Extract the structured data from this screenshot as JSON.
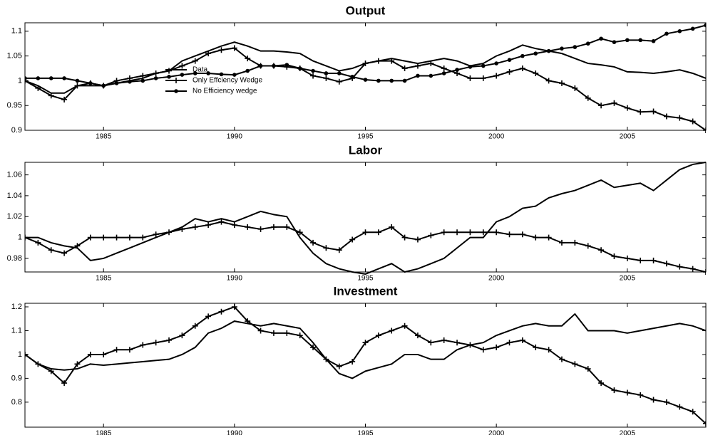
{
  "chart_data": [
    {
      "type": "line",
      "title": "Output",
      "x": [
        1982,
        1982.5,
        1983,
        1983.5,
        1984,
        1984.5,
        1985,
        1985.5,
        1986,
        1986.5,
        1987,
        1987.5,
        1988,
        1988.5,
        1989,
        1989.5,
        1990,
        1990.5,
        1991,
        1991.5,
        1992,
        1992.5,
        1993,
        1993.5,
        1994,
        1994.5,
        1995,
        1995.5,
        1996,
        1996.5,
        1997,
        1997.5,
        1998,
        1998.5,
        1999,
        1999.5,
        2000,
        2000.5,
        2001,
        2001.5,
        2002,
        2002.5,
        2003,
        2003.5,
        2004,
        2004.5,
        2005,
        2005.5,
        2006,
        2006.5,
        2007,
        2007.5,
        2008
      ],
      "series": [
        {
          "name": "Data",
          "color": "#000000",
          "marker": "none",
          "values": [
            1.0,
            0.99,
            0.975,
            0.975,
            0.99,
            0.99,
            0.99,
            0.995,
            1.0,
            1.005,
            1.015,
            1.02,
            1.04,
            1.05,
            1.06,
            1.07,
            1.078,
            1.07,
            1.06,
            1.06,
            1.058,
            1.055,
            1.04,
            1.03,
            1.02,
            1.025,
            1.035,
            1.04,
            1.045,
            1.04,
            1.035,
            1.04,
            1.045,
            1.04,
            1.03,
            1.035,
            1.05,
            1.06,
            1.072,
            1.065,
            1.06,
            1.055,
            1.045,
            1.035,
            1.032,
            1.028,
            1.018,
            1.017,
            1.015,
            1.018,
            1.022,
            1.015,
            1.005
          ]
        },
        {
          "name": "Only Effciency Wedge",
          "color": "#000000",
          "marker": "plus",
          "values": [
            1.0,
            0.985,
            0.97,
            0.962,
            0.99,
            0.995,
            0.99,
            1.0,
            1.005,
            1.01,
            1.015,
            1.02,
            1.03,
            1.04,
            1.055,
            1.062,
            1.066,
            1.045,
            1.03,
            1.03,
            1.028,
            1.025,
            1.01,
            1.005,
            0.998,
            1.005,
            1.035,
            1.04,
            1.04,
            1.025,
            1.03,
            1.035,
            1.025,
            1.015,
            1.005,
            1.005,
            1.01,
            1.018,
            1.025,
            1.015,
            1.0,
            0.995,
            0.985,
            0.965,
            0.95,
            0.955,
            0.945,
            0.937,
            0.938,
            0.928,
            0.925,
            0.918,
            0.9
          ]
        },
        {
          "name": "No Efficiency wedge",
          "color": "#000000",
          "marker": "circle",
          "values": [
            1.005,
            1.005,
            1.005,
            1.005,
            1.0,
            0.995,
            0.99,
            0.995,
            0.998,
            1.0,
            1.005,
            1.008,
            1.012,
            1.015,
            1.015,
            1.013,
            1.012,
            1.02,
            1.03,
            1.03,
            1.032,
            1.025,
            1.02,
            1.015,
            1.015,
            1.008,
            1.002,
            1.0,
            1.0,
            1.0,
            1.01,
            1.01,
            1.015,
            1.022,
            1.028,
            1.03,
            1.035,
            1.042,
            1.05,
            1.055,
            1.06,
            1.065,
            1.068,
            1.075,
            1.085,
            1.078,
            1.082,
            1.082,
            1.08,
            1.095,
            1.1,
            1.105,
            1.112
          ]
        }
      ],
      "xlim": [
        1982,
        2008
      ],
      "xticks": [
        1985,
        1990,
        1995,
        2000,
        2005
      ],
      "ylim": [
        0.9,
        1.117
      ],
      "yticks": [
        0.9,
        0.95,
        1,
        1.05,
        1.1
      ],
      "legend": true
    },
    {
      "type": "line",
      "title": "Labor",
      "x": [
        1982,
        1982.5,
        1983,
        1983.5,
        1984,
        1984.5,
        1985,
        1985.5,
        1986,
        1986.5,
        1987,
        1987.5,
        1988,
        1988.5,
        1989,
        1989.5,
        1990,
        1990.5,
        1991,
        1991.5,
        1992,
        1992.5,
        1993,
        1993.5,
        1994,
        1994.5,
        1995,
        1995.5,
        1996,
        1996.5,
        1997,
        1997.5,
        1998,
        1998.5,
        1999,
        1999.5,
        2000,
        2000.5,
        2001,
        2001.5,
        2002,
        2002.5,
        2003,
        2003.5,
        2004,
        2004.5,
        2005,
        2005.5,
        2006,
        2006.5,
        2007,
        2007.5,
        2008
      ],
      "series": [
        {
          "color": "#000000",
          "marker": "none",
          "values": [
            1.0,
            1.0,
            0.995,
            0.992,
            0.99,
            0.978,
            0.98,
            0.985,
            0.99,
            0.995,
            1.0,
            1.005,
            1.01,
            1.018,
            1.015,
            1.018,
            1.015,
            1.02,
            1.025,
            1.022,
            1.02,
            1.0,
            0.985,
            0.975,
            0.97,
            0.967,
            0.965,
            0.97,
            0.975,
            0.967,
            0.97,
            0.975,
            0.98,
            0.99,
            1.0,
            1.0,
            1.015,
            1.02,
            1.028,
            1.03,
            1.038,
            1.042,
            1.045,
            1.05,
            1.055,
            1.048,
            1.05,
            1.052,
            1.045,
            1.055,
            1.065,
            1.07,
            1.072
          ]
        },
        {
          "color": "#000000",
          "marker": "plus",
          "values": [
            1.0,
            0.995,
            0.988,
            0.985,
            0.992,
            1.0,
            1.0,
            1.0,
            1.0,
            1.0,
            1.003,
            1.005,
            1.008,
            1.01,
            1.012,
            1.015,
            1.012,
            1.01,
            1.008,
            1.01,
            1.01,
            1.005,
            0.995,
            0.99,
            0.988,
            0.998,
            1.005,
            1.005,
            1.01,
            1.0,
            0.998,
            1.002,
            1.005,
            1.005,
            1.005,
            1.005,
            1.005,
            1.003,
            1.003,
            1.0,
            1.0,
            0.995,
            0.995,
            0.992,
            0.988,
            0.982,
            0.98,
            0.978,
            0.978,
            0.975,
            0.972,
            0.97,
            0.967
          ]
        }
      ],
      "xlim": [
        1982,
        2008
      ],
      "xticks": [
        1985,
        1990,
        1995,
        2000,
        2005
      ],
      "ylim": [
        0.967,
        1.072
      ],
      "yticks": [
        0.98,
        1,
        1.02,
        1.04,
        1.06
      ]
    },
    {
      "type": "line",
      "title": "Investment",
      "x": [
        1982,
        1982.5,
        1983,
        1983.5,
        1984,
        1984.5,
        1985,
        1985.5,
        1986,
        1986.5,
        1987,
        1987.5,
        1988,
        1988.5,
        1989,
        1989.5,
        1990,
        1990.5,
        1991,
        1991.5,
        1992,
        1992.5,
        1993,
        1993.5,
        1994,
        1994.5,
        1995,
        1995.5,
        1996,
        1996.5,
        1997,
        1997.5,
        1998,
        1998.5,
        1999,
        1999.5,
        2000,
        2000.5,
        2001,
        2001.5,
        2002,
        2002.5,
        2003,
        2003.5,
        2004,
        2004.5,
        2005,
        2005.5,
        2006,
        2006.5,
        2007,
        2007.5,
        2008
      ],
      "series": [
        {
          "color": "#000000",
          "marker": "none",
          "values": [
            1.0,
            0.96,
            0.94,
            0.935,
            0.94,
            0.96,
            0.955,
            0.96,
            0.965,
            0.97,
            0.975,
            0.98,
            1.0,
            1.03,
            1.09,
            1.11,
            1.14,
            1.13,
            1.12,
            1.13,
            1.12,
            1.11,
            1.05,
            0.98,
            0.92,
            0.9,
            0.93,
            0.945,
            0.96,
            1.0,
            1.0,
            0.98,
            0.98,
            1.02,
            1.04,
            1.05,
            1.08,
            1.1,
            1.12,
            1.13,
            1.12,
            1.12,
            1.17,
            1.1,
            1.1,
            1.1,
            1.09,
            1.1,
            1.11,
            1.12,
            1.13,
            1.12,
            1.1
          ]
        },
        {
          "color": "#000000",
          "marker": "plus",
          "values": [
            1.0,
            0.96,
            0.93,
            0.88,
            0.96,
            1.0,
            1.0,
            1.02,
            1.02,
            1.04,
            1.05,
            1.06,
            1.08,
            1.12,
            1.16,
            1.18,
            1.2,
            1.14,
            1.1,
            1.09,
            1.09,
            1.08,
            1.03,
            0.98,
            0.95,
            0.97,
            1.05,
            1.08,
            1.1,
            1.12,
            1.08,
            1.05,
            1.06,
            1.05,
            1.04,
            1.02,
            1.03,
            1.05,
            1.06,
            1.03,
            1.02,
            0.98,
            0.96,
            0.94,
            0.88,
            0.85,
            0.84,
            0.83,
            0.81,
            0.8,
            0.78,
            0.76,
            0.71
          ]
        }
      ],
      "xlim": [
        1982,
        2008
      ],
      "xticks": [
        1985,
        1990,
        1995,
        2000,
        2005
      ],
      "ylim": [
        0.695,
        1.215
      ],
      "yticks": [
        0.8,
        0.9,
        1,
        1.1,
        1.2
      ]
    }
  ]
}
